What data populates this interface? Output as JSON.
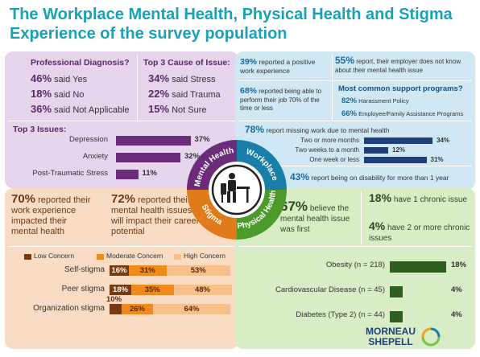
{
  "title": "The Workplace Mental Health, Physical Health and Stigma Experience of the survey population",
  "colors": {
    "mental": "#6b2c7a",
    "workplace": "#1a7fa8",
    "physical": "#4c9a2a",
    "stigma": "#e07b1c"
  },
  "diagnosis": {
    "header": "Professional Diagnosis?",
    "items": [
      {
        "pct": "46%",
        "text": "said Yes"
      },
      {
        "pct": "18%",
        "text": "said No"
      },
      {
        "pct": "36%",
        "text": "said Not Applicable"
      }
    ]
  },
  "cause": {
    "header": "Top 3 Cause of Issue:",
    "items": [
      {
        "pct": "34%",
        "text": "said Stress"
      },
      {
        "pct": "22%",
        "text": "said Trauma"
      },
      {
        "pct": "15%",
        "text": "Not Sure"
      }
    ]
  },
  "workplace": {
    "stat1": {
      "pct": "39%",
      "text": "reported a positive work experience"
    },
    "stat2": {
      "pct": "55%",
      "text": "report, their employer does not know about their mental health issue"
    },
    "stat3": {
      "pct": "68%",
      "text": "reported being able to perform their job 70% of the time or less"
    },
    "support": {
      "header": "Most common support programs?",
      "items": [
        {
          "pct": "82%",
          "text": "Harassment Policy"
        },
        {
          "pct": "66%",
          "text": "Employee/Family Assistance Programs"
        }
      ]
    },
    "missing": {
      "pct": "78%",
      "text": "report missing work due to mental health"
    },
    "disability": {
      "pct": "43%",
      "text": "report being on disability for more than 1 year"
    }
  },
  "circle": {
    "mental": "Mental Health",
    "workplace": "Workplace",
    "physical": "Physical Health",
    "stigma": "Stigma"
  },
  "stigma_text": {
    "s1": {
      "pct": "70%",
      "text": "reported their work experience impacted their mental health"
    },
    "s2": {
      "pct": "72%",
      "text": "reported their mental health issues will impact their career potential"
    }
  },
  "physical": {
    "believe": {
      "pct": "67%",
      "text": "believe the mental health issue was first"
    },
    "chronic1": {
      "pct": "18%",
      "text": "have 1 chronic issue"
    },
    "chronic2": {
      "pct": "4%",
      "text": "have 2 or more chronic issues"
    }
  },
  "brand": {
    "line1": "MORNEAU",
    "line2": "SHEPELL"
  },
  "chart_data": [
    {
      "type": "bar",
      "title": "Top 3 Issues:",
      "categories": [
        "Depression",
        "Anxiety",
        "Post-Traumatic Stress"
      ],
      "values": [
        37,
        32,
        11
      ],
      "labels": [
        "37%",
        "32%",
        "11%"
      ]
    },
    {
      "type": "bar",
      "categories": [
        "Two or more months",
        "Two weeks to a month",
        "One week or less"
      ],
      "values": [
        34,
        12,
        31
      ],
      "labels": [
        "34%",
        "12%",
        "31%"
      ]
    },
    {
      "type": "bar",
      "stacked": true,
      "legend": [
        "Low Concern",
        "Moderate Concern",
        "High Concern"
      ],
      "legend_colors": [
        "#7a3a10",
        "#f08a1c",
        "#f7c08a"
      ],
      "categories": [
        "Self-stigma",
        "Peer stigma",
        "Organization stigma"
      ],
      "series": [
        {
          "name": "Low Concern",
          "values": [
            16,
            18,
            10
          ]
        },
        {
          "name": "Moderate Concern",
          "values": [
            31,
            35,
            26
          ]
        },
        {
          "name": "High Concern",
          "values": [
            53,
            48,
            64
          ]
        }
      ],
      "labels": [
        [
          "16%",
          "31%",
          "53%"
        ],
        [
          "18%",
          "35%",
          "48%"
        ],
        [
          "10%",
          "26%",
          "64%"
        ]
      ]
    },
    {
      "type": "bar",
      "categories": [
        "Obesity (n = 218)",
        "Cardiovascular Disease (n = 45)",
        "Diabetes (Type 2) (n = 44)"
      ],
      "values": [
        18,
        4,
        4
      ],
      "labels": [
        "18%",
        "4%",
        "4%"
      ]
    }
  ]
}
